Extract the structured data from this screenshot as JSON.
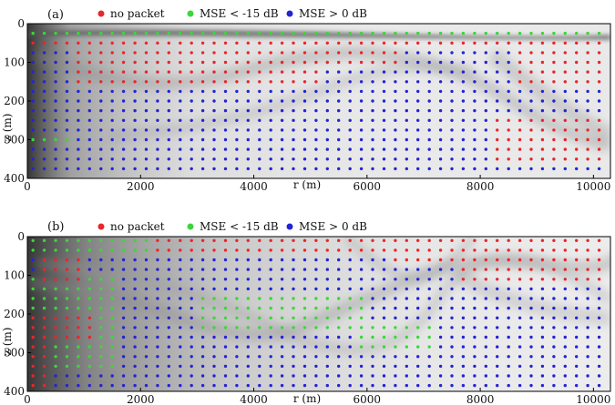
{
  "chart_data": [
    {
      "type": "scatter",
      "panel_label": "(a)",
      "xlabel": "r (m)",
      "ylabel": "z (m)",
      "xlim": [
        0,
        10300
      ],
      "ylim": [
        400,
        0
      ],
      "x_ticks": [
        0,
        2000,
        4000,
        6000,
        8000,
        10000
      ],
      "y_ticks": [
        0,
        100,
        200,
        300,
        400
      ],
      "legend": {
        "placement": "top",
        "entries": [
          {
            "label": "no packet",
            "color": "#e8262b"
          },
          {
            "label": "MSE < -15 dB",
            "color": "#3cd63c"
          },
          {
            "label": "MSE > 0 dB",
            "color": "#2424d6"
          }
        ]
      },
      "grid": {
        "x_start": 100,
        "x_step": 200,
        "x_count": 51,
        "z_start": 25,
        "z_step": 25,
        "z_count": 15
      },
      "series": [
        {
          "name": "no packet",
          "regions": [
            {
              "r_range": [
                100,
                10300
              ],
              "z_range": [
                40,
                60
              ]
            },
            {
              "r_range": [
                900,
                5200
              ],
              "z_range": [
                70,
                150
              ]
            },
            {
              "r_range": [
                3000,
                6500
              ],
              "z_range": [
                65,
                105
              ]
            },
            {
              "r_range": [
                8600,
                10300
              ],
              "z_range": [
                50,
                150
              ]
            },
            {
              "r_range": [
                8200,
                10300
              ],
              "z_range": [
                250,
                360
              ]
            }
          ]
        },
        {
          "name": "MSE < -15 dB",
          "regions": [
            {
              "r_range": [
                100,
                10300
              ],
              "z_range": [
                15,
                35
              ]
            },
            {
              "r_range": [
                100,
                700
              ],
              "z_range": [
                280,
                320
              ]
            },
            {
              "r_range": [
                1200,
                2300
              ],
              "z_range": [
                90,
                110
              ]
            }
          ]
        },
        {
          "name": "MSE > 0 dB",
          "regions": [
            {
              "r_range": [
                100,
                10300
              ],
              "z_range": [
                0,
                400
              ]
            }
          ]
        }
      ]
    },
    {
      "type": "scatter",
      "panel_label": "(b)",
      "xlabel": "r (m)",
      "ylabel": "z (m)",
      "xlim": [
        0,
        10300
      ],
      "ylim": [
        400,
        0
      ],
      "x_ticks": [
        0,
        2000,
        4000,
        6000,
        8000,
        10000
      ],
      "y_ticks": [
        0,
        100,
        200,
        300,
        400
      ],
      "legend": {
        "placement": "top",
        "entries": [
          {
            "label": "no packet",
            "color": "#e8262b"
          },
          {
            "label": "MSE < -15 dB",
            "color": "#3cd63c"
          },
          {
            "label": "MSE > 0 dB",
            "color": "#2424d6"
          }
        ]
      },
      "grid": {
        "x_start": 100,
        "x_step": 200,
        "x_count": 51,
        "z_start": 10,
        "z_step": 25,
        "z_count": 16
      },
      "series": [
        {
          "name": "no packet",
          "regions": [
            {
              "r_range": [
                2300,
                10300
              ],
              "z_range": [
                0,
                40
              ]
            },
            {
              "r_range": [
                7700,
                10300
              ],
              "z_range": [
                40,
                110
              ]
            },
            {
              "r_range": [
                200,
                1000
              ],
              "z_range": [
                60,
                110
              ]
            },
            {
              "r_range": [
                100,
                1200
              ],
              "z_range": [
                190,
                260
              ]
            },
            {
              "r_range": [
                100,
                400
              ],
              "z_range": [
                280,
                400
              ]
            },
            {
              "r_range": [
                6500,
                7500
              ],
              "z_range": [
                40,
                60
              ]
            }
          ]
        },
        {
          "name": "MSE < -15 dB",
          "regions": [
            {
              "r_range": [
                100,
                2300
              ],
              "z_range": [
                0,
                40
              ]
            },
            {
              "r_range": [
                100,
                1500
              ],
              "z_range": [
                90,
                340
              ]
            },
            {
              "r_range": [
                3000,
                6000
              ],
              "z_range": [
                150,
                250
              ]
            },
            {
              "r_range": [
                5800,
                7200
              ],
              "z_range": [
                230,
                290
              ]
            }
          ]
        },
        {
          "name": "MSE > 0 dB",
          "regions": [
            {
              "r_range": [
                100,
                10300
              ],
              "z_range": [
                0,
                400
              ]
            }
          ]
        }
      ]
    }
  ]
}
